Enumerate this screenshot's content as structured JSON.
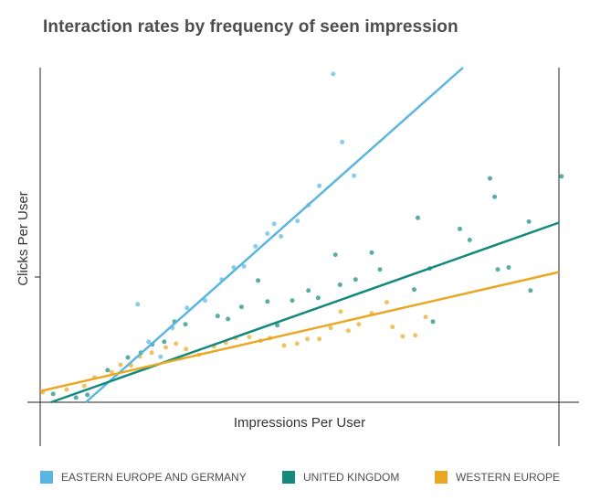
{
  "title": "Interaction rates by frequency of seen impression",
  "chart_data": {
    "type": "scatter",
    "title": "Interaction rates by frequency of seen impression",
    "xlabel": "Impressions Per User",
    "ylabel": "Clicks Per User",
    "xlim": [
      0,
      100
    ],
    "ylim": [
      0,
      100
    ],
    "grid": false,
    "legend_position": "bottom",
    "series": [
      {
        "name": "EASTERN EUROPE AND GERMANY",
        "color": "#5ab6e0",
        "trendline": {
          "x": [
            8.8,
            81.5
          ],
          "y": [
            0,
            100
          ]
        },
        "points": [
          [
            18.8,
            29.3
          ],
          [
            20.9,
            18.1
          ],
          [
            23.2,
            13.6
          ],
          [
            25.5,
            22.2
          ],
          [
            28.3,
            28.2
          ],
          [
            31.8,
            30.4
          ],
          [
            35.0,
            36.7
          ],
          [
            37.3,
            40.3
          ],
          [
            39.3,
            40.6
          ],
          [
            41.5,
            46.6
          ],
          [
            43.8,
            50.4
          ],
          [
            45.1,
            53.3
          ],
          [
            46.4,
            49.6
          ],
          [
            49.6,
            54.2
          ],
          [
            51.7,
            58.9
          ],
          [
            53.8,
            64.7
          ],
          [
            56.5,
            98.1
          ],
          [
            58.2,
            77.8
          ],
          [
            60.5,
            67.7
          ]
        ]
      },
      {
        "name": "UNITED KINGDOM",
        "color": "#138a7c",
        "trendline": {
          "x": [
            2.1,
            100
          ],
          "y": [
            0,
            53.7
          ]
        },
        "points": [
          [
            2.5,
            2.5
          ],
          [
            6.9,
            1.4
          ],
          [
            9.1,
            2.2
          ],
          [
            13.0,
            9.6
          ],
          [
            16.9,
            13.4
          ],
          [
            19.4,
            14.8
          ],
          [
            21.6,
            17.3
          ],
          [
            23.9,
            18.1
          ],
          [
            25.9,
            24.1
          ],
          [
            28.0,
            23.3
          ],
          [
            34.2,
            25.8
          ],
          [
            36.2,
            24.9
          ],
          [
            38.8,
            28.5
          ],
          [
            42.0,
            36.4
          ],
          [
            43.8,
            30.1
          ],
          [
            45.7,
            23.0
          ],
          [
            48.6,
            30.4
          ],
          [
            51.7,
            33.4
          ],
          [
            53.6,
            31.2
          ],
          [
            56.9,
            44.1
          ],
          [
            57.8,
            35.1
          ],
          [
            60.8,
            36.7
          ],
          [
            63.9,
            44.7
          ],
          [
            65.5,
            39.7
          ],
          [
            72.1,
            33.7
          ],
          [
            72.8,
            55.1
          ],
          [
            75.1,
            40.0
          ],
          [
            75.7,
            24.1
          ],
          [
            80.9,
            51.8
          ],
          [
            82.8,
            48.5
          ],
          [
            86.7,
            66.9
          ],
          [
            87.6,
            61.4
          ],
          [
            88.2,
            39.7
          ],
          [
            90.3,
            40.3
          ],
          [
            94.2,
            54.0
          ],
          [
            94.5,
            33.4
          ],
          [
            100.5,
            67.5
          ]
        ]
      },
      {
        "name": "WESTERN EUROPE",
        "color": "#e8a823",
        "trendline": {
          "x": [
            0,
            100
          ],
          "y": [
            3.3,
            38.9
          ]
        },
        "points": [
          [
            0.5,
            3.0
          ],
          [
            5.1,
            3.8
          ],
          [
            8.5,
            4.9
          ],
          [
            10.5,
            7.4
          ],
          [
            13.8,
            9.0
          ],
          [
            15.5,
            11.2
          ],
          [
            17.5,
            11.0
          ],
          [
            19.2,
            13.7
          ],
          [
            21.5,
            14.8
          ],
          [
            24.2,
            16.4
          ],
          [
            26.2,
            17.5
          ],
          [
            28.1,
            15.9
          ],
          [
            30.6,
            14.2
          ],
          [
            33.5,
            16.7
          ],
          [
            35.8,
            17.8
          ],
          [
            37.7,
            19.2
          ],
          [
            40.3,
            19.5
          ],
          [
            42.5,
            18.4
          ],
          [
            44.3,
            19.2
          ],
          [
            47.0,
            17.0
          ],
          [
            49.5,
            17.5
          ],
          [
            51.5,
            18.9
          ],
          [
            53.8,
            18.9
          ],
          [
            56.0,
            22.2
          ],
          [
            57.9,
            27.1
          ],
          [
            59.4,
            21.4
          ],
          [
            61.4,
            23.3
          ],
          [
            63.9,
            26.6
          ],
          [
            66.8,
            29.9
          ],
          [
            67.9,
            22.5
          ],
          [
            69.9,
            19.7
          ],
          [
            72.3,
            20.0
          ],
          [
            74.3,
            25.5
          ]
        ]
      }
    ]
  }
}
